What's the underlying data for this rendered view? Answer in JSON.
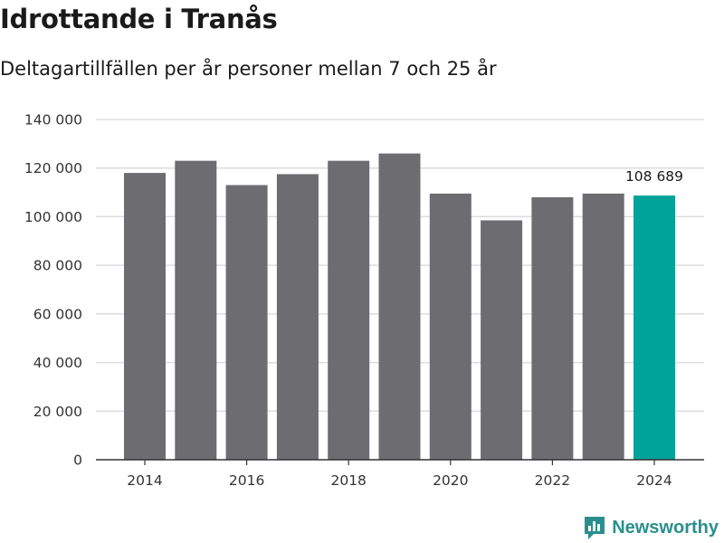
{
  "header": {
    "title": "Idrottande i Tranås",
    "subtitle": "Deltagartillfällen per år personer mellan 7 och 25 år"
  },
  "chart_data": {
    "type": "bar",
    "title": "Idrottande i Tranås",
    "subtitle": "Deltagartillfällen per år personer mellan 7 och 25 år",
    "categories": [
      "2014",
      "2015",
      "2016",
      "2017",
      "2018",
      "2019",
      "2020",
      "2021",
      "2022",
      "2023",
      "2024"
    ],
    "values": [
      118000,
      123000,
      113000,
      117500,
      123000,
      126000,
      109500,
      98500,
      108000,
      109500,
      108689
    ],
    "xticks": [
      "2014",
      "2016",
      "2018",
      "2020",
      "2022",
      "2024"
    ],
    "yticks": [
      "0",
      "20 000",
      "40 000",
      "60 000",
      "80 000",
      "100 000",
      "120 000",
      "140 000"
    ],
    "ytick_values": [
      0,
      20000,
      40000,
      60000,
      80000,
      100000,
      120000,
      140000
    ],
    "ylim": [
      0,
      140000
    ],
    "highlight_index": 10,
    "highlight_label": "108 689",
    "xlabel": "",
    "ylabel": "",
    "grid": true,
    "colors": {
      "bar": "#6d6c71",
      "highlight": "#00a39a",
      "grid": "#dddddd",
      "axis": "#333333"
    }
  },
  "footer": {
    "brand": "Newsworthy",
    "logo_icon": "newsworthy-logo-icon",
    "logo_color": "#2a8f8c"
  }
}
